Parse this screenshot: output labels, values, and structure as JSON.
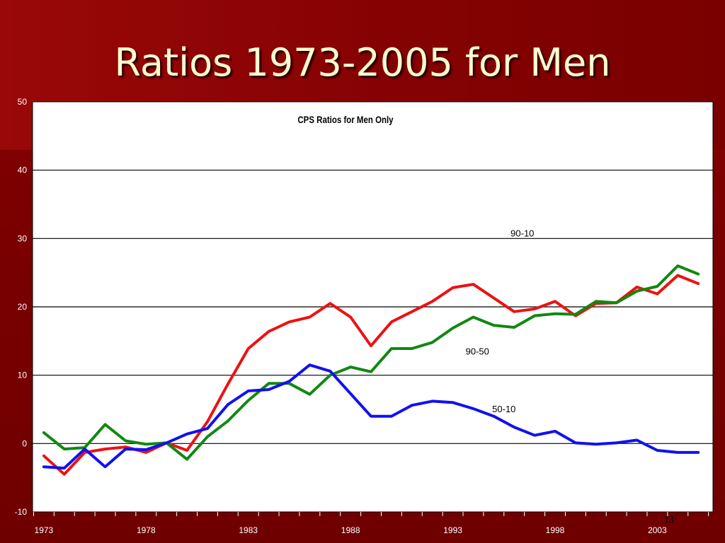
{
  "slide": {
    "title": "Ratios 1973-2005 for Men",
    "page_number": "13",
    "colors": {
      "background": "#7a0000",
      "title_text": "#fffbd0",
      "plot_area": "#ffffff"
    }
  },
  "chart_data": {
    "type": "line",
    "title": "CPS Ratios for Men Only",
    "xlabel": "",
    "ylabel": "",
    "xlim": [
      1973,
      2005
    ],
    "ylim": [
      -10,
      50
    ],
    "y_ticks": [
      -10,
      0,
      10,
      20,
      30,
      40,
      50
    ],
    "x_tick_labels": [
      "1973",
      "1978",
      "1983",
      "1988",
      "1993",
      "1998",
      "2003"
    ],
    "gridlines": "horizontal",
    "x": [
      1973,
      1974,
      1975,
      1976,
      1977,
      1978,
      1979,
      1980,
      1981,
      1982,
      1983,
      1984,
      1985,
      1986,
      1987,
      1988,
      1989,
      1990,
      1991,
      1992,
      1993,
      1994,
      1995,
      1996,
      1997,
      1998,
      1999,
      2000,
      2001,
      2002,
      2003,
      2004,
      2005
    ],
    "series": [
      {
        "name": "90-10",
        "color": "#ee1111",
        "values": [
          -1.8,
          -4.5,
          -1.3,
          -0.8,
          -0.5,
          -1.3,
          0.1,
          -1.0,
          3.2,
          8.7,
          13.9,
          16.4,
          17.8,
          18.5,
          20.5,
          18.5,
          14.3,
          17.8,
          19.3,
          20.8,
          22.8,
          23.3,
          21.3,
          19.3,
          19.7,
          20.8,
          18.7,
          20.5,
          20.6,
          22.9,
          21.9,
          24.6,
          23.4
        ]
      },
      {
        "name": "90-50",
        "color": "#118811",
        "values": [
          1.6,
          -0.8,
          -0.6,
          2.8,
          0.4,
          -0.1,
          0.1,
          -2.3,
          1.0,
          3.3,
          6.3,
          8.8,
          8.8,
          7.2,
          10.0,
          11.2,
          10.5,
          13.9,
          13.9,
          14.8,
          16.9,
          18.5,
          17.3,
          17.0,
          18.7,
          19.0,
          18.9,
          20.8,
          20.6,
          22.3,
          23.0,
          26.0,
          24.8
        ]
      },
      {
        "name": "50-10",
        "color": "#1111ee",
        "values": [
          -3.4,
          -3.6,
          -0.8,
          -3.4,
          -0.8,
          -0.9,
          0.1,
          1.4,
          2.2,
          5.7,
          7.7,
          7.9,
          9.1,
          11.5,
          10.6,
          7.3,
          4.0,
          4.0,
          5.6,
          6.2,
          6.0,
          5.1,
          4.0,
          2.4,
          1.2,
          1.8,
          0.1,
          -0.1,
          0.1,
          0.5,
          -1.0,
          -1.3,
          -1.3
        ]
      }
    ],
    "series_labels": [
      "90-10",
      "90-50",
      "50-10"
    ]
  }
}
